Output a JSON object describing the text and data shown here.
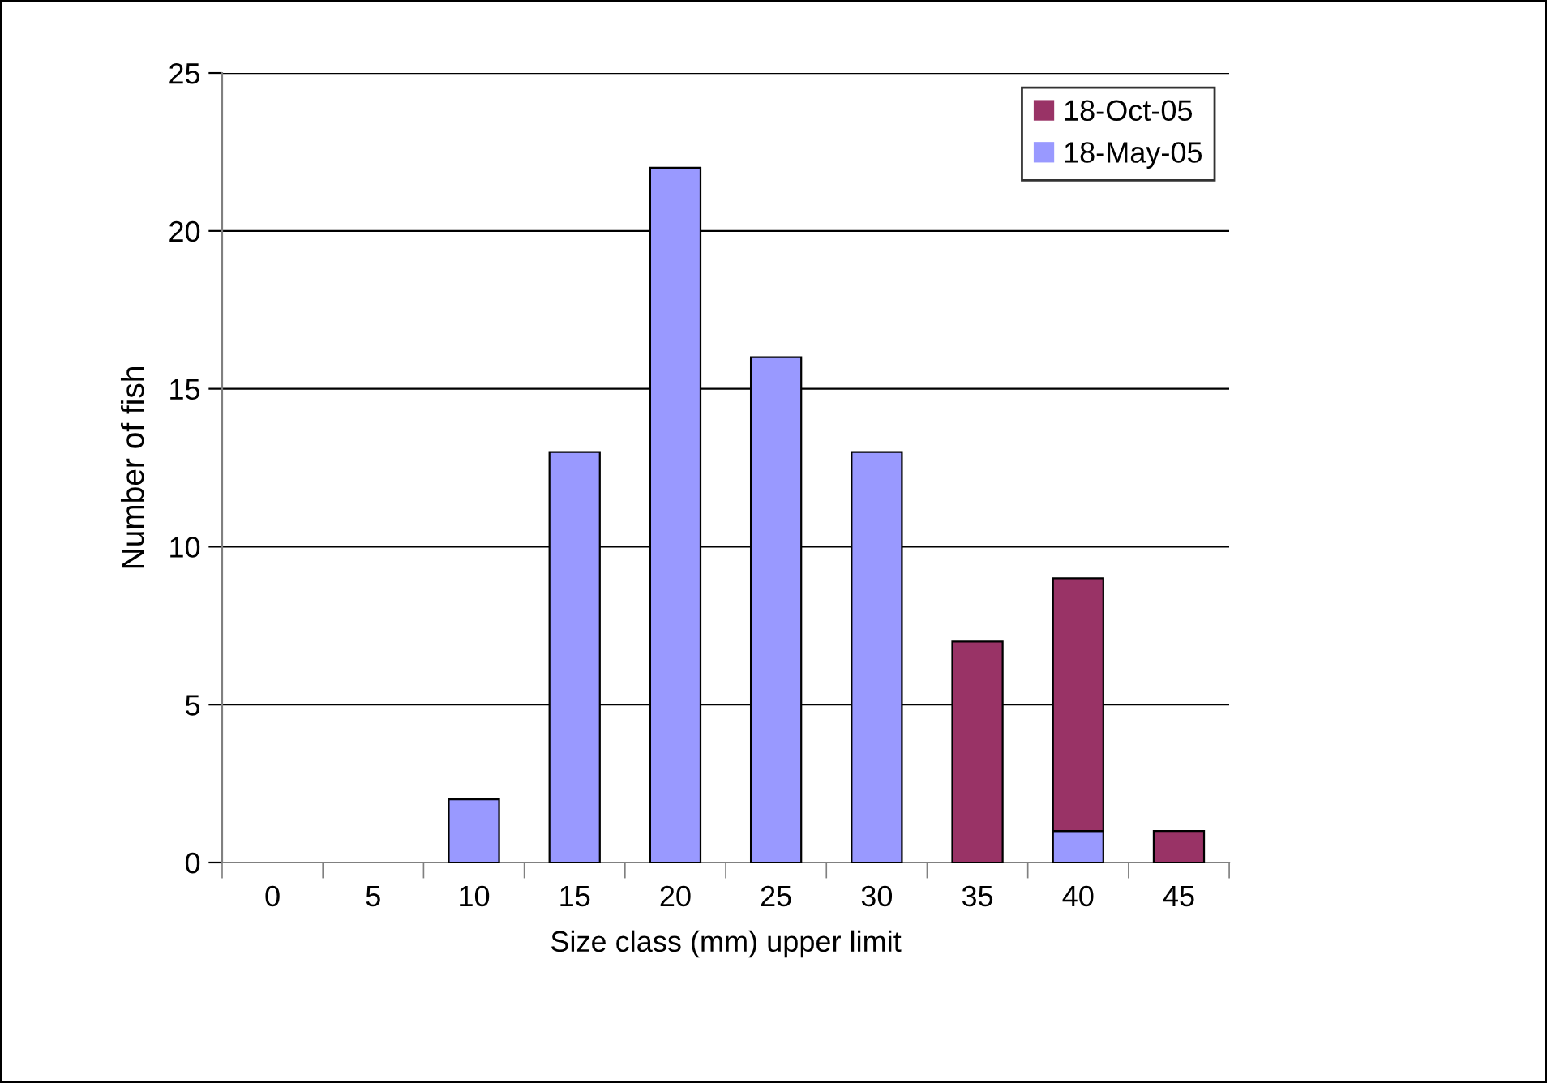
{
  "chart_data": {
    "type": "bar",
    "stacked": true,
    "xlabel": "Size class (mm) upper limit",
    "ylabel": "Number of fish",
    "categories": [
      "0",
      "5",
      "10",
      "15",
      "20",
      "25",
      "30",
      "35",
      "40",
      "45"
    ],
    "series": [
      {
        "name": "18-May-05",
        "color": "#9999ff",
        "values": [
          0,
          0,
          2,
          13,
          22,
          16,
          13,
          0,
          1,
          0
        ]
      },
      {
        "name": "18-Oct-05",
        "color": "#993366",
        "values": [
          0,
          0,
          0,
          0,
          0,
          0,
          0,
          7,
          8,
          1
        ]
      }
    ],
    "ylim": [
      0,
      25
    ],
    "yticks": [
      0,
      5,
      10,
      15,
      20,
      25
    ],
    "grid": "y",
    "legend": "top right"
  }
}
